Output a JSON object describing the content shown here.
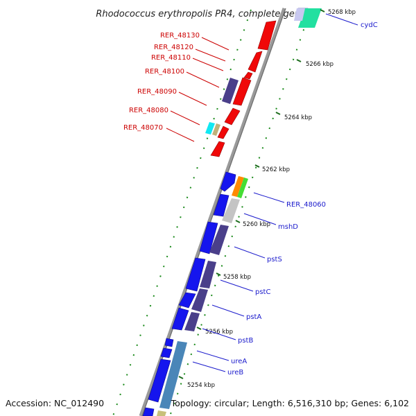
{
  "title": "Rhodococcus erythropolis PR4, complete genome",
  "accession": "Accession: NC_012490",
  "topology": "Topology: circular; Length: 6,516,310 bp; Genes: 6,102",
  "colors": {
    "backbone": "#8a8a8a",
    "forward_cds": "#1515ee",
    "reverse_cds": "#f00808",
    "left_label": "#cc0000",
    "right_label": "#1a1acc",
    "tick": "#1a8a1a",
    "pathway": "#4a3f8a"
  },
  "kbp_marks": [
    {
      "label": "5254 kbp"
    },
    {
      "label": "5256 kbp"
    },
    {
      "label": "5258 kbp"
    },
    {
      "label": "5260 kbp"
    },
    {
      "label": "5262 kbp"
    },
    {
      "label": "5264 kbp"
    },
    {
      "label": "5266 kbp"
    },
    {
      "label": "5268 kbp"
    }
  ],
  "left_genes": [
    {
      "label": "RER_48130"
    },
    {
      "label": "RER_48120"
    },
    {
      "label": "RER_48110"
    },
    {
      "label": "RER_48100"
    },
    {
      "label": "RER_48090"
    },
    {
      "label": "RER_48080"
    },
    {
      "label": "RER_48070"
    }
  ],
  "right_genes": [
    {
      "label": "cydC"
    },
    {
      "label": "RER_48060"
    },
    {
      "label": "mshD"
    },
    {
      "label": "pstS"
    },
    {
      "label": "pstC"
    },
    {
      "label": "pstA"
    },
    {
      "label": "pstB"
    },
    {
      "label": "ureA"
    },
    {
      "label": "ureB"
    }
  ]
}
